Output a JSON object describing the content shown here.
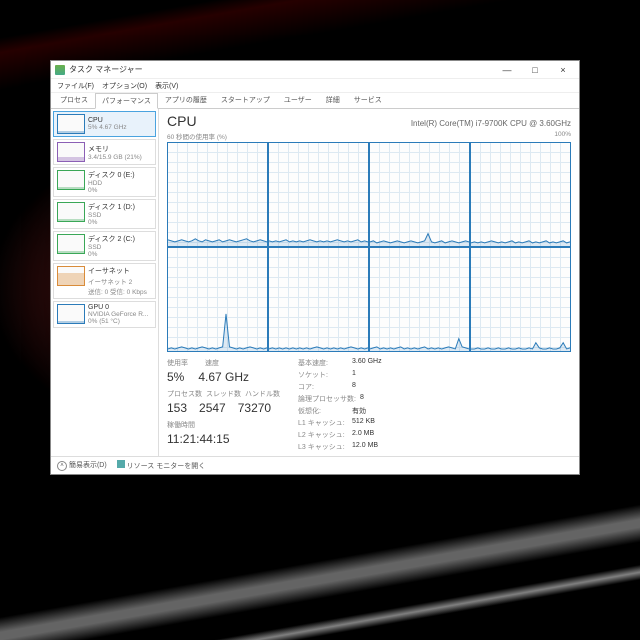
{
  "wallpaper": {
    "dragon_eye_outer": "#c9c9c9",
    "dragon_eye_pupil": "#c01018",
    "bg_dark": "#000000",
    "accent": "#d41016"
  },
  "window": {
    "title": "タスク マネージャー",
    "controls": {
      "min": "—",
      "max": "□",
      "close": "×"
    },
    "menu": [
      "ファイル(F)",
      "オプション(O)",
      "表示(V)"
    ],
    "tabs": [
      "プロセス",
      "パフォーマンス",
      "アプリの履歴",
      "スタートアップ",
      "ユーザー",
      "詳細",
      "サービス"
    ],
    "active_tab_index": 1
  },
  "sidebar": {
    "items": [
      {
        "title": "CPU",
        "line2": "5% 4.67 GHz",
        "line3": "",
        "color": "#2b7bb9",
        "fill": 5,
        "selected": true
      },
      {
        "title": "メモリ",
        "line2": "3.4/15.9 GB (21%)",
        "line3": "",
        "color": "#8b5fb5",
        "fill": 21,
        "selected": false
      },
      {
        "title": "ディスク 0 (E:)",
        "line2": "HDD",
        "line3": "0%",
        "color": "#3aa757",
        "fill": 2,
        "selected": false
      },
      {
        "title": "ディスク 1 (D:)",
        "line2": "SSD",
        "line3": "0%",
        "color": "#3aa757",
        "fill": 2,
        "selected": false
      },
      {
        "title": "ディスク 2 (C:)",
        "line2": "SSD",
        "line3": "0%",
        "color": "#3aa757",
        "fill": 2,
        "selected": false
      },
      {
        "title": "イーサネット",
        "line2": "イーサネット 2",
        "line3": "送信: 0  受信: 0 Kbps",
        "color": "#d98c3a",
        "fill": 60,
        "selected": false
      },
      {
        "title": "GPU 0",
        "line2": "NVIDIA GeForce R...",
        "line3": "0% (51 °C)",
        "color": "#2b7bb9",
        "fill": 2,
        "selected": false
      }
    ]
  },
  "main": {
    "heading": "CPU",
    "cpu_name": "Intel(R) Core(TM) i7-9700K CPU @ 3.60GHz",
    "chart_left": "60 秒間の使用率 (%)",
    "chart_right_max": "100%",
    "chart": {
      "line_color": "#2b7bb9",
      "fill_color": "rgba(43,123,185,0.15)",
      "grid_color": "#dde9f2",
      "cells": 8,
      "time_span_s": 60,
      "y_max": 100,
      "series": [
        [
          6,
          5,
          4,
          5,
          6,
          5,
          4,
          5,
          7,
          5,
          4,
          6,
          5,
          4,
          5,
          6,
          4,
          5,
          6,
          5,
          4,
          5,
          6,
          7,
          5,
          4,
          5,
          6,
          5,
          4
        ],
        [
          5,
          4,
          5,
          4,
          5,
          6,
          4,
          5,
          4,
          5,
          4,
          5,
          6,
          5,
          4,
          5,
          4,
          5,
          4,
          5,
          6,
          5,
          4,
          5,
          4,
          5,
          6,
          4,
          5,
          4
        ],
        [
          4,
          5,
          3,
          4,
          5,
          4,
          3,
          4,
          5,
          4,
          3,
          4,
          5,
          4,
          3,
          4,
          5,
          12,
          4,
          3,
          4,
          5,
          3,
          4,
          5,
          4,
          3,
          4,
          5,
          4
        ],
        [
          3,
          4,
          3,
          4,
          3,
          4,
          5,
          4,
          3,
          4,
          3,
          4,
          5,
          3,
          4,
          3,
          4,
          5,
          3,
          4,
          3,
          4,
          5,
          3,
          4,
          3,
          4,
          5,
          3,
          4
        ],
        [
          2,
          3,
          2,
          3,
          4,
          3,
          2,
          3,
          2,
          3,
          4,
          3,
          2,
          3,
          2,
          3,
          4,
          36,
          4,
          3,
          2,
          3,
          2,
          3,
          4,
          3,
          2,
          3,
          2,
          3
        ],
        [
          2,
          3,
          2,
          3,
          2,
          3,
          2,
          3,
          2,
          3,
          2,
          3,
          2,
          3,
          4,
          3,
          2,
          3,
          2,
          3,
          2,
          3,
          2,
          3,
          4,
          3,
          2,
          3,
          2,
          3
        ],
        [
          2,
          3,
          4,
          2,
          3,
          2,
          3,
          2,
          3,
          4,
          2,
          3,
          2,
          3,
          2,
          3,
          4,
          2,
          3,
          2,
          3,
          2,
          3,
          4,
          3,
          2,
          12,
          4,
          3,
          2
        ],
        [
          2,
          2,
          3,
          2,
          2,
          3,
          2,
          2,
          3,
          2,
          2,
          3,
          2,
          2,
          3,
          2,
          2,
          3,
          2,
          8,
          3,
          2,
          2,
          3,
          2,
          2,
          3,
          8,
          2,
          3
        ]
      ]
    },
    "left_stats": {
      "labels": {
        "util": "使用率",
        "speed": "速度",
        "proc": "プロセス数",
        "thr": "スレッド数",
        "hnd": "ハンドル数",
        "up": "稼働時間"
      },
      "util": "5%",
      "speed": "4.67 GHz",
      "proc": "153",
      "thr": "2547",
      "hnd": "73270",
      "up": "11:21:44:15"
    },
    "right_stats": {
      "rows": [
        {
          "l": "基本速度:",
          "v": "3.60 GHz"
        },
        {
          "l": "ソケット:",
          "v": "1"
        },
        {
          "l": "コア:",
          "v": "8"
        },
        {
          "l": "論理プロセッサ数:",
          "v": "8"
        },
        {
          "l": "仮想化:",
          "v": "有効"
        },
        {
          "l": "L1 キャッシュ:",
          "v": "512 KB"
        },
        {
          "l": "L2 キャッシュ:",
          "v": "2.0 MB"
        },
        {
          "l": "L3 キャッシュ:",
          "v": "12.0 MB"
        }
      ]
    }
  },
  "footer": {
    "fewer": "簡易表示(D)",
    "resmon": "リソース モニターを開く"
  }
}
